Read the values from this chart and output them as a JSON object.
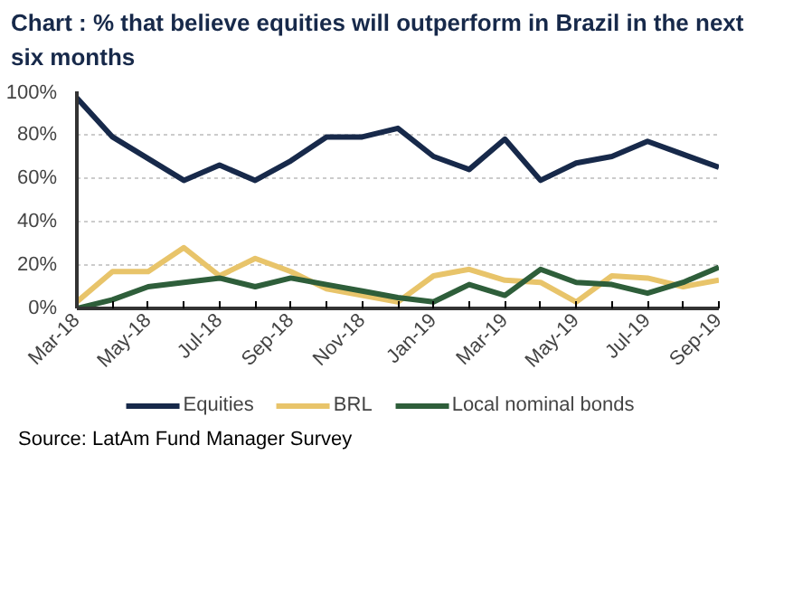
{
  "chart_data": {
    "type": "line",
    "title": "Chart : % that believe equities will outperform in Brazil in the next six months",
    "categories": [
      "Mar-18",
      null,
      "May-18",
      null,
      "Jul-18",
      null,
      "Sep-18",
      null,
      "Nov-18",
      null,
      "Jan-19",
      null,
      "Mar-19",
      null,
      "May-19",
      null,
      "Jul-19",
      null,
      "Sep-19"
    ],
    "series": [
      {
        "name": "Equities",
        "color": "#17294a",
        "values": [
          97,
          79,
          69,
          59,
          66,
          59,
          68,
          79,
          79,
          83,
          70,
          64,
          78,
          59,
          67,
          70,
          77,
          71,
          65
        ]
      },
      {
        "name": "BRL",
        "color": "#e8c46a",
        "values": [
          3,
          17,
          17,
          28,
          15,
          23,
          17,
          9,
          6,
          3,
          15,
          18,
          13,
          12,
          3,
          15,
          14,
          10,
          13
        ]
      },
      {
        "name": "Local nominal bonds",
        "color": "#2e5e3a",
        "values": [
          0,
          4,
          10,
          12,
          14,
          10,
          14,
          11,
          8,
          5,
          3,
          11,
          6,
          18,
          12,
          11,
          7,
          12,
          19
        ]
      }
    ],
    "ylim": [
      0,
      100
    ],
    "yticks": [
      {
        "value": 0,
        "label": "0%"
      },
      {
        "value": 20,
        "label": "20%"
      },
      {
        "value": 40,
        "label": "40%"
      },
      {
        "value": 60,
        "label": "60%"
      },
      {
        "value": 80,
        "label": "80%"
      },
      {
        "value": 100,
        "label": "100%"
      }
    ],
    "grid": "y",
    "legend": "bottom",
    "line_style": "solid",
    "marker": "none",
    "annotations": [
      "Source: LatAm Fund Manager Survey"
    ]
  }
}
